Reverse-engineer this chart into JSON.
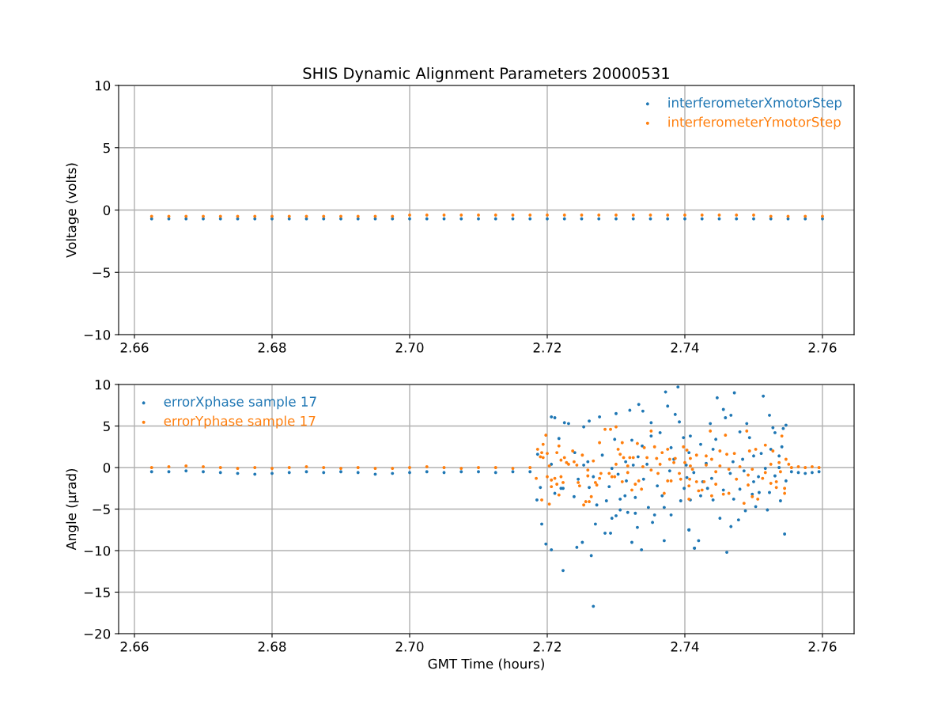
{
  "chart_data": [
    {
      "type": "scatter",
      "title": "SHIS Dynamic Alignment Parameters 20000531",
      "ylabel": "Voltage (volts)",
      "x": [
        2.6625,
        2.665,
        2.6675,
        2.67,
        2.6725,
        2.675,
        2.6775,
        2.68,
        2.6825,
        2.685,
        2.6875,
        2.69,
        2.6925,
        2.695,
        2.6975,
        2.7,
        2.7025,
        2.705,
        2.7075,
        2.71,
        2.7125,
        2.715,
        2.7175,
        2.72,
        2.7225,
        2.725,
        2.7275,
        2.73,
        2.7325,
        2.735,
        2.7375,
        2.74,
        2.7425,
        2.745,
        2.7475,
        2.75,
        2.7525,
        2.755,
        2.7575,
        2.76
      ],
      "series": [
        {
          "name": "interferometerXmotorStep",
          "color": "#1f77b4",
          "values": [
            -0.7,
            -0.7,
            -0.7,
            -0.7,
            -0.7,
            -0.7,
            -0.7,
            -0.7,
            -0.7,
            -0.7,
            -0.7,
            -0.7,
            -0.7,
            -0.7,
            -0.7,
            -0.7,
            -0.7,
            -0.7,
            -0.7,
            -0.7,
            -0.7,
            -0.7,
            -0.7,
            -0.7,
            -0.7,
            -0.7,
            -0.7,
            -0.7,
            -0.7,
            -0.7,
            -0.7,
            -0.7,
            -0.7,
            -0.7,
            -0.7,
            -0.7,
            -0.7,
            -0.7,
            -0.7,
            -0.7
          ]
        },
        {
          "name": "interferometerYmotorStep",
          "color": "#ff7f0e",
          "values": [
            -0.5,
            -0.5,
            -0.5,
            -0.5,
            -0.5,
            -0.5,
            -0.5,
            -0.5,
            -0.5,
            -0.5,
            -0.5,
            -0.5,
            -0.5,
            -0.5,
            -0.5,
            -0.4,
            -0.4,
            -0.4,
            -0.4,
            -0.4,
            -0.4,
            -0.4,
            -0.4,
            -0.4,
            -0.4,
            -0.4,
            -0.4,
            -0.4,
            -0.4,
            -0.4,
            -0.4,
            -0.4,
            -0.4,
            -0.4,
            -0.4,
            -0.4,
            -0.5,
            -0.5,
            -0.5,
            -0.5
          ]
        }
      ],
      "xlim": [
        2.6577,
        2.7646
      ],
      "xticks": [
        2.66,
        2.68,
        {
          "value": 2.7,
          "label": "2.70"
        },
        2.72,
        2.74,
        2.76
      ],
      "ylim": [
        -10,
        10
      ],
      "yticks": [
        {
          "value": -10,
          "label": "−10"
        },
        {
          "value": -5,
          "label": "−5"
        },
        0,
        5,
        10
      ],
      "grid": true,
      "legend": "top right",
      "marker": "circle"
    },
    {
      "type": "scatter",
      "xlabel": "GMT Time (hours)",
      "ylabel": "Angle (µrad)",
      "series": [
        {
          "name": "errorXphase sample 17",
          "color": "#1f77b4",
          "x": [
            2.6625,
            2.665,
            2.6675,
            2.67,
            2.6725,
            2.675,
            2.6775,
            2.68,
            2.6825,
            2.685,
            2.6875,
            2.69,
            2.6925,
            2.695,
            2.6975,
            2.7,
            2.7025,
            2.705,
            2.7075,
            2.71,
            2.7125,
            2.715,
            2.7175,
            2.7206,
            2.7211,
            2.7225,
            2.7231,
            2.7261,
            2.7276,
            2.73,
            2.732,
            2.7333,
            2.7339,
            2.7372,
            2.7375,
            2.739,
            2.7386,
            2.7392,
            2.7192,
            2.7198,
            2.7206,
            2.7223,
            2.7243,
            2.7251,
            2.7264,
            2.7267,
            2.727,
            2.7284,
            2.7292,
            2.7323,
            2.7337,
            2.7331,
            2.737,
            2.7353,
            2.7356,
            2.738,
            2.7406,
            2.7414,
            2.73,
            2.7294,
            2.7306,
            2.7328,
            2.7317,
            2.7347,
            2.737,
            2.7186,
            2.7217,
            2.7253,
            2.7298,
            2.7323,
            2.7351,
            2.7351,
            2.7364,
            2.7338,
            2.738,
            2.7408,
            2.719,
            2.7185,
            2.7211,
            2.7239,
            2.7272,
            2.7286,
            2.7306,
            2.7313,
            2.7367,
            2.7394,
            2.722,
            2.7261,
            2.729,
            2.7328,
            2.734,
            2.736,
            2.7259,
            2.728,
            2.7294,
            2.7314,
            2.7325,
            2.7332,
            2.7345,
            2.7378,
            2.7384,
            2.7402,
            2.7413,
            2.7253,
            2.724,
            2.7206,
            2.7223,
            2.7245,
            2.7267,
            2.7303,
            2.7315,
            2.7447,
            2.7472,
            2.7514,
            2.7456,
            2.7459,
            2.7467,
            2.7523,
            2.7437,
            2.749,
            2.7528,
            2.7547,
            2.7543,
            2.7398,
            2.7423,
            2.7445,
            2.748,
            2.7494,
            2.7531,
            2.7541,
            2.7441,
            2.7406,
            2.75,
            2.7511,
            2.7525,
            2.7537,
            2.7431,
            2.747,
            2.7484,
            2.7517,
            2.7537,
            2.7403,
            2.7439,
            2.7466,
            2.7486,
            2.7507,
            2.7531,
            2.7547,
            2.7399,
            2.7426,
            2.7433,
            2.7456,
            2.748,
            2.75,
            2.7508,
            2.7523,
            2.7423,
            2.7441,
            2.7471,
            2.7498,
            2.7408,
            2.7488,
            2.7503,
            2.752,
            2.7539,
            2.7451,
            2.7467,
            2.7478,
            2.7406,
            2.742,
            2.7414,
            2.7461,
            2.7545,
            2.7555,
            2.7565,
            2.7575,
            2.7585,
            2.7595
          ],
          "values": [
            -0.5,
            -0.5,
            -0.4,
            -0.5,
            -0.6,
            -0.7,
            -0.8,
            -0.7,
            -0.6,
            -0.5,
            -0.6,
            -0.5,
            -0.6,
            -0.8,
            -0.7,
            -0.6,
            -0.5,
            -0.6,
            -0.5,
            -0.5,
            -0.6,
            -0.5,
            -0.5,
            6.1,
            6.0,
            5.4,
            5.3,
            5.6,
            6.1,
            6.5,
            6.9,
            7.6,
            6.8,
            9.1,
            7.4,
            9.7,
            6.4,
            5.5,
            -6.8,
            -9.2,
            -9.9,
            -12.4,
            -9.6,
            -9.0,
            -10.6,
            -16.7,
            -6.8,
            -7.9,
            -7.9,
            -9.0,
            -9.9,
            -7.2,
            -8.8,
            -6.6,
            -5.7,
            -5.7,
            -7.5,
            -9.7,
            -5.8,
            -6.1,
            -5.1,
            -5.5,
            -5.4,
            -4.8,
            -4.8,
            1.6,
            3.5,
            4.9,
            3.4,
            3.3,
            5.4,
            3.8,
            4.2,
            2.6,
            2.4,
            3.8,
            -2.4,
            -3.9,
            -3.1,
            -3.5,
            -4.5,
            -4.0,
            -3.8,
            -3.4,
            -3.4,
            -4.0,
            -2.5,
            -2.4,
            -2.3,
            -3.6,
            -1.4,
            -2.2,
            0.7,
            1.5,
            -0.1,
            0.7,
            0.3,
            1.3,
            0.4,
            -0.4,
            1.0,
            0.3,
            -0.6,
            0.3,
            1.8,
            0.4,
            -2.5,
            -1.4,
            -1.1,
            -0.8,
            -1.6,
            8.4,
            9.0,
            8.6,
            7.0,
            6.0,
            6.3,
            6.3,
            5.3,
            5.3,
            4.8,
            5.1,
            4.7,
            3.6,
            2.8,
            3.4,
            4.3,
            3.6,
            4.2,
            2.5,
            2.2,
            1.8,
            1.4,
            1.7,
            2.2,
            1.4,
            0.5,
            0.7,
            1.0,
            -0.1,
            0.0,
            -1.2,
            -1.3,
            -0.7,
            -0.4,
            -1.1,
            -1.0,
            -1.6,
            -2.5,
            -1.7,
            -2.5,
            -2.7,
            -2.6,
            -1.7,
            -3.0,
            -3.0,
            -3.4,
            -3.9,
            -3.8,
            -3.2,
            -3.9,
            -5.2,
            -4.7,
            -5.1,
            -4.0,
            -6.1,
            -7.1,
            -6.3,
            -7.5,
            -8.8,
            -9.7,
            -10.2,
            -8.0,
            -0.5,
            -0.6,
            -0.7,
            -0.6,
            -0.5
          ]
        },
        {
          "name": "errorYphase sample 17",
          "color": "#ff7f0e",
          "x": [
            2.6625,
            2.665,
            2.6675,
            2.67,
            2.6725,
            2.675,
            2.6775,
            2.68,
            2.6825,
            2.685,
            2.6875,
            2.69,
            2.6925,
            2.695,
            2.6975,
            2.7,
            2.7025,
            2.705,
            2.7075,
            2.71,
            2.7125,
            2.715,
            2.7175,
            2.7198,
            2.7194,
            2.7186,
            2.7192,
            2.72,
            2.719,
            2.7194,
            2.7203,
            2.7184,
            2.72,
            2.7206,
            2.7211,
            2.7206,
            2.7192,
            2.7203,
            2.7217,
            2.7214,
            2.722,
            2.7223,
            2.7214,
            2.7217,
            2.722,
            2.7225,
            2.7228,
            2.7231,
            2.7237,
            2.7239,
            2.7243,
            2.7251,
            2.7245,
            2.7247,
            2.7253,
            2.7256,
            2.7261,
            2.7264,
            2.7259,
            2.7259,
            2.7267,
            2.727,
            2.7272,
            2.7276,
            2.7278,
            2.7276,
            2.7284,
            2.7292,
            2.73,
            2.729,
            2.7294,
            2.7298,
            2.73,
            2.7303,
            2.7306,
            2.7309,
            2.7309,
            2.7311,
            2.7317,
            2.7317,
            2.732,
            2.7323,
            2.7325,
            2.7328,
            2.7331,
            2.7333,
            2.7337,
            2.7339,
            2.7341,
            2.7345,
            2.7351,
            2.7351,
            2.7356,
            2.7359,
            2.7361,
            2.7364,
            2.7367,
            2.737,
            2.7375,
            2.7375,
            2.7378,
            2.738,
            2.7384,
            2.7386,
            2.7392,
            2.7394,
            2.7398,
            2.74,
            2.7403,
            2.7406,
            2.7406,
            2.7411,
            2.7408,
            2.7417,
            2.7431,
            2.7439,
            2.7437,
            2.7459,
            2.749,
            2.7541,
            2.7451,
            2.7461,
            2.7472,
            2.7494,
            2.7503,
            2.7517,
            2.7528,
            2.7408,
            2.7431,
            2.7451,
            2.748,
            2.7498,
            2.7525,
            2.7537,
            2.7547,
            2.7551,
            2.7445,
            2.7464,
            2.7492,
            2.7517,
            2.7539,
            2.7407,
            2.7428,
            2.7445,
            2.7475,
            2.7492,
            2.7513,
            2.7525,
            2.7533,
            2.7417,
            2.7425,
            2.742,
            2.7439,
            2.7456,
            2.7464,
            2.7498,
            2.7506,
            2.7545,
            2.7545,
            2.7533,
            2.7486,
            2.7555,
            2.7565,
            2.7575,
            2.7585,
            2.7595
          ],
          "values": [
            0.0,
            0.1,
            0.2,
            0.1,
            0.0,
            -0.1,
            0.0,
            -0.1,
            0.0,
            0.1,
            0.0,
            -0.1,
            0.0,
            -0.1,
            -0.1,
            0.0,
            0.1,
            0.0,
            -0.1,
            0.0,
            0.0,
            -0.1,
            0.0,
            3.9,
            2.8,
            2.2,
            1.8,
            1.7,
            1.3,
            1.2,
            0.2,
            -1.3,
            -1.1,
            -1.5,
            -1.3,
            -2.3,
            -3.9,
            -4.4,
            -3.3,
            -2.0,
            -1.1,
            -1.8,
            1.8,
            2.6,
            0.9,
            1.2,
            0.6,
            0.4,
            2.0,
            0.7,
            0.3,
            1.5,
            -1.8,
            -2.2,
            -4.5,
            -4.1,
            -4.1,
            -3.5,
            -0.3,
            -1.0,
            0.8,
            -1.8,
            -2.1,
            -1.3,
            -0.7,
            3.0,
            4.6,
            4.6,
            4.9,
            -0.7,
            -1.1,
            -1.1,
            0.4,
            2.2,
            1.6,
            3.0,
            -1.7,
            1.2,
            0.2,
            -0.6,
            1.2,
            -2.7,
            1.2,
            -2.0,
            2.9,
            -1.6,
            -2.6,
            0.1,
            2.4,
            1.2,
            4.4,
            -0.3,
            2.5,
            1.1,
            -0.7,
            0.4,
            1.8,
            -3.1,
            2.2,
            -1.6,
            1.0,
            -1.6,
            0.6,
            1.1,
            -0.7,
            -1.4,
            2.5,
            0.6,
            2.1,
            -2.2,
            -3.8,
            -0.2,
            1.1,
            1.5,
            1.4,
            1.0,
            4.4,
            3.9,
            4.4,
            3.8,
            2.0,
            1.6,
            1.7,
            2.0,
            2.2,
            2.7,
            2.0,
            0.2,
            0.3,
            0.2,
            0.1,
            -0.2,
            0.4,
            0.6,
            1.0,
            0.4,
            -0.5,
            -0.2,
            -0.9,
            -0.6,
            -0.5,
            -1.4,
            -1.7,
            -2.0,
            -1.4,
            -2.1,
            -1.3,
            -1.9,
            -1.7,
            -1.7,
            -2.7,
            -2.8,
            -3.4,
            -3.2,
            -3.1,
            -3.5,
            -3.8,
            -3.1,
            -2.5,
            -2.4,
            -4.3,
            0.0,
            0.1,
            0.0,
            0.1,
            0.0
          ]
        }
      ],
      "xlim": [
        2.6577,
        2.7646
      ],
      "xticks": [
        2.66,
        2.68,
        {
          "value": 2.7,
          "label": "2.70"
        },
        2.72,
        2.74,
        2.76
      ],
      "ylim": [
        -20,
        10
      ],
      "yticks": [
        {
          "value": -20,
          "label": "−20"
        },
        {
          "value": -15,
          "label": "−15"
        },
        {
          "value": -10,
          "label": "−10"
        },
        {
          "value": -5,
          "label": "−5"
        },
        0,
        5,
        10
      ],
      "grid": true,
      "legend": "top left",
      "marker": "circle"
    }
  ]
}
